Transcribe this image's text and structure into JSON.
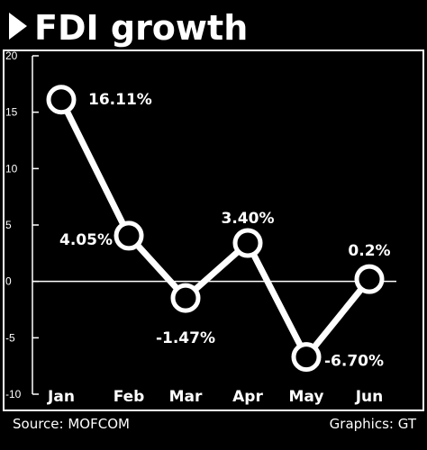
{
  "chart_data": {
    "type": "line",
    "title": "FDI growth",
    "categories": [
      "Jan",
      "Feb",
      "Mar",
      "Apr",
      "May",
      "Jun"
    ],
    "values": [
      16.11,
      4.05,
      -1.47,
      3.4,
      -6.7,
      0.2
    ],
    "data_labels": [
      "16.11%",
      "4.05%",
      "-1.47%",
      "3.40%",
      "-6.70%",
      "0.2%"
    ],
    "ylim": [
      -10,
      20
    ],
    "yticks": [
      {
        "value": -10,
        "label": "-10"
      },
      {
        "value": -5,
        "label": "-5"
      },
      {
        "value": 0,
        "label": "0"
      },
      {
        "value": 5,
        "label": "5"
      },
      {
        "value": 10,
        "label": "10"
      },
      {
        "value": 15,
        "label": "15"
      },
      {
        "value": 20,
        "label": "20"
      }
    ],
    "xlabel": "",
    "ylabel": "",
    "grid": false,
    "legend": "none"
  },
  "footer": {
    "source": "Source: MOFCOM",
    "credit": "Graphics: GT"
  },
  "colors": {
    "background": "#000000",
    "line": "#ffffff",
    "frame": "#ffffff"
  }
}
